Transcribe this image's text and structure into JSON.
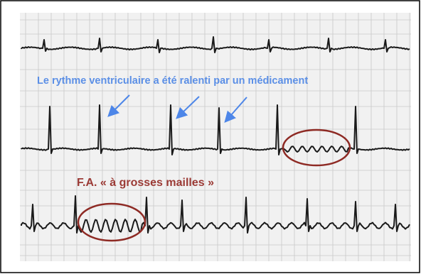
{
  "annotations": {
    "rate_note": "Le rythme ventriculaire a été ralenti par un médicament",
    "af_label": "F.A. « à grosses mailles »"
  }
}
